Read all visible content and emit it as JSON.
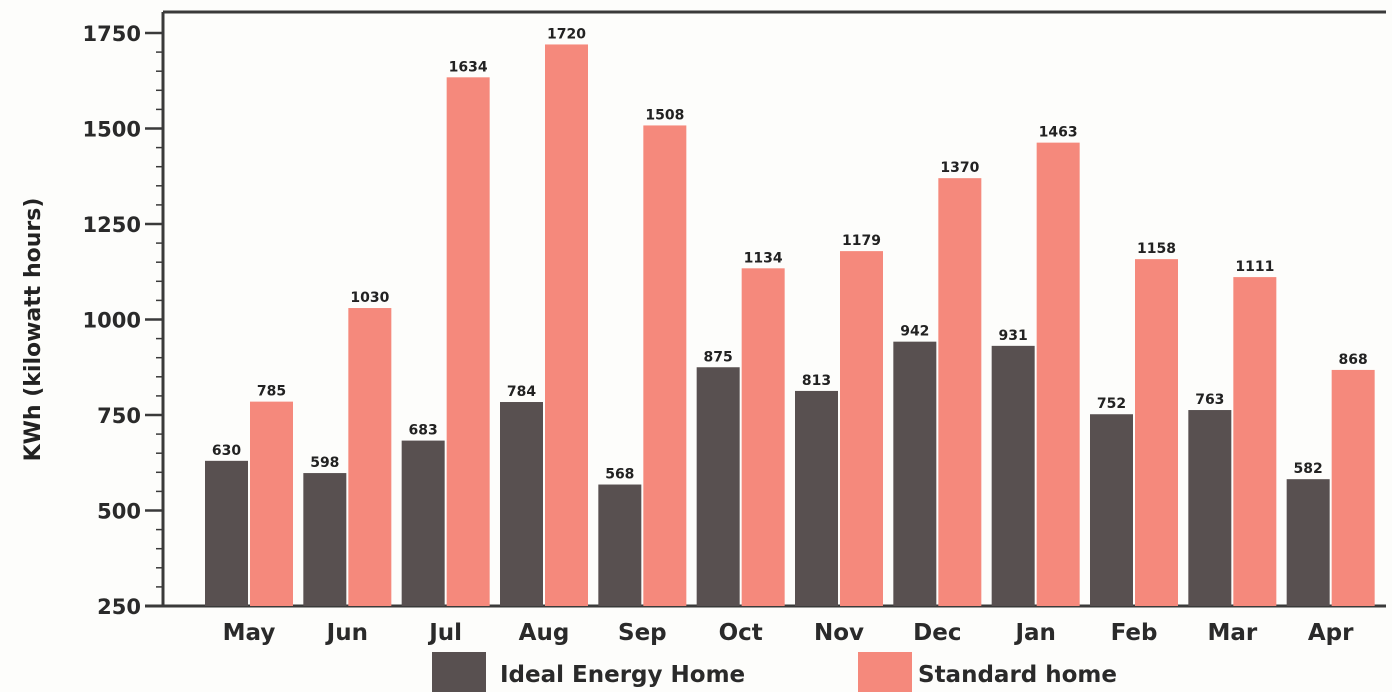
{
  "chart_data": {
    "type": "bar",
    "title": "",
    "xlabel": "",
    "ylabel": "KWh (kilowatt hours)",
    "ylim": [
      250,
      1750
    ],
    "yticks": [
      250,
      500,
      750,
      1000,
      1250,
      1500,
      1750
    ],
    "grid": false,
    "legend_position": "bottom",
    "categories": [
      "May",
      "Jun",
      "Jul",
      "Aug",
      "Sep",
      "Oct",
      "Nov",
      "Dec",
      "Jan",
      "Feb",
      "Mar",
      "Apr"
    ],
    "series": [
      {
        "name": "Ideal Energy Home",
        "color": "#585050",
        "values": [
          630,
          598,
          683,
          784,
          568,
          875,
          813,
          942,
          931,
          752,
          763,
          582
        ]
      },
      {
        "name": "Standard home",
        "color": "#f5897c",
        "values": [
          785,
          1030,
          1634,
          1720,
          1508,
          1134,
          1179,
          1370,
          1463,
          1158,
          1111,
          868
        ]
      }
    ]
  }
}
